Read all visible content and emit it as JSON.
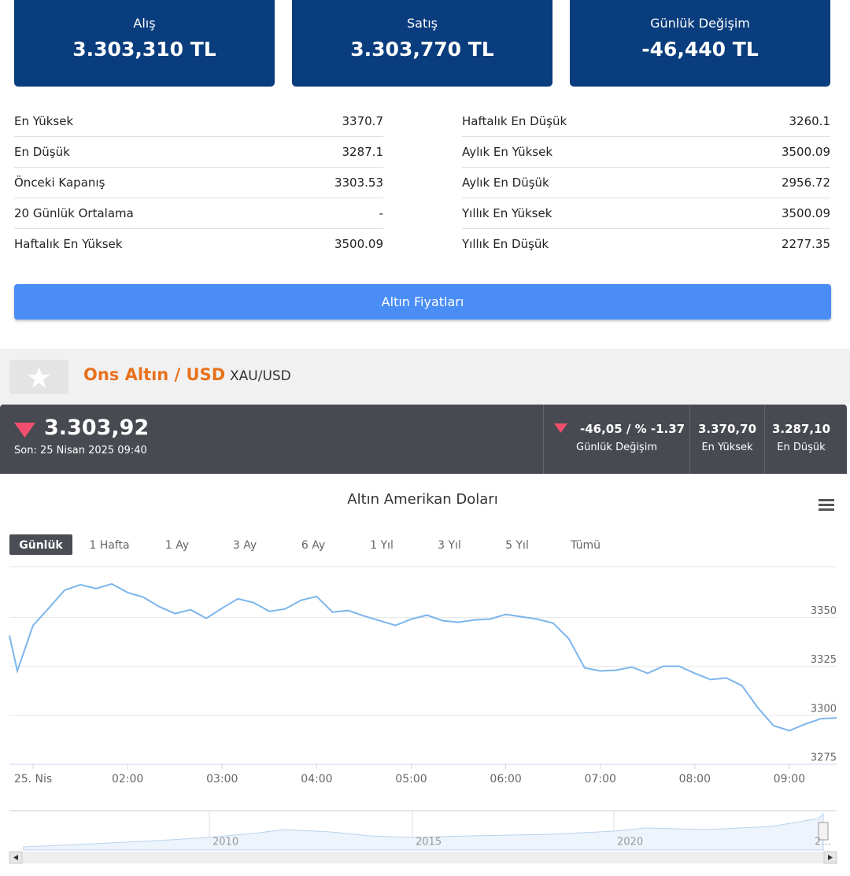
{
  "cards": [
    {
      "label": "Alış",
      "value": "3.303,310 TL"
    },
    {
      "label": "Satış",
      "value": "3.303,770 TL"
    },
    {
      "label": "Günlük Değişim",
      "value": "-46,440 TL"
    }
  ],
  "stats": {
    "left": [
      {
        "label": "En Yüksek",
        "value": "3370.7"
      },
      {
        "label": "En Düşük",
        "value": "3287.1"
      },
      {
        "label": "Önceki Kapanış",
        "value": "3303.53"
      },
      {
        "label": "20 Günlük Ortalama",
        "value": "-"
      },
      {
        "label": "Haftalık En Yüksek",
        "value": "3500.09"
      }
    ],
    "right": [
      {
        "label": "Haftalık En Düşük",
        "value": "3260.1"
      },
      {
        "label": "Aylık En Yüksek",
        "value": "3500.09"
      },
      {
        "label": "Aylık En Düşük",
        "value": "2956.72"
      },
      {
        "label": "Yıllık En Yüksek",
        "value": "3500.09"
      },
      {
        "label": "Yıllık En Düşük",
        "value": "2277.35"
      }
    ]
  },
  "button": "Altın Fiyatları",
  "instrument": {
    "name": "Ons Altın / USD",
    "symbol": "XAU/USD"
  },
  "ticker": {
    "price": "3.303,92",
    "updated": "Son: 25 Nisan 2025 09:40",
    "change": {
      "value": "-46,05 / % -1.37",
      "label": "Günlük Değişim"
    },
    "high": {
      "value": "3.370,70",
      "label": "En Yüksek"
    },
    "low": {
      "value": "3.287,10",
      "label": "En Düşük"
    }
  },
  "chart_data": {
    "type": "line",
    "title": "Altın Amerikan Doları",
    "ranges": [
      "Günlük",
      "1 Hafta",
      "1 Ay",
      "3 Ay",
      "6 Ay",
      "1 Yıl",
      "3 Yıl",
      "5 Yıl",
      "Tümü"
    ],
    "selected_range": "Günlük",
    "x": [
      45,
      50,
      60,
      70,
      80,
      90,
      100,
      110,
      120,
      130,
      140,
      150,
      160,
      170,
      180,
      190,
      200,
      210,
      220,
      230,
      240,
      250,
      260,
      270,
      280,
      290,
      300,
      310,
      320,
      330,
      340,
      350,
      360,
      370,
      380,
      390,
      400,
      410,
      420,
      430,
      440,
      450,
      460,
      470,
      480,
      490,
      500,
      510,
      520,
      530,
      540,
      550,
      560,
      570
    ],
    "values": [
      3340.8,
      3322.7,
      3346.0,
      3354.8,
      3364.0,
      3366.8,
      3364.8,
      3367.2,
      3362.8,
      3360.4,
      3355.6,
      3352.0,
      3354.0,
      3349.6,
      3354.8,
      3359.6,
      3357.6,
      3353.2,
      3354.4,
      3358.8,
      3360.8,
      3352.8,
      3353.6,
      3350.8,
      3348.4,
      3346.0,
      3349.2,
      3351.2,
      3348.4,
      3347.6,
      3348.8,
      3349.2,
      3351.6,
      3350.4,
      3349.2,
      3347.2,
      3339.2,
      3324.3,
      3322.7,
      3323.1,
      3324.7,
      3321.5,
      3325.1,
      3325.1,
      3321.5,
      3318.3,
      3319.1,
      3315.1,
      3303.9,
      3294.7,
      3292.2,
      3295.5,
      3298.3,
      3298.7
    ],
    "color": "#7cb5ec",
    "xlim": [
      45,
      570
    ],
    "xticks": [
      {
        "value": 60,
        "label": "25. Nis"
      },
      {
        "value": 120,
        "label": "02:00"
      },
      {
        "value": 180,
        "label": "03:00"
      },
      {
        "value": 240,
        "label": "04:00"
      },
      {
        "value": 300,
        "label": "05:00"
      },
      {
        "value": 360,
        "label": "06:00"
      },
      {
        "value": 420,
        "label": "07:00"
      },
      {
        "value": 480,
        "label": "08:00"
      },
      {
        "value": 540,
        "label": "09:00"
      }
    ],
    "ylim": [
      3275,
      3376
    ],
    "yticks": [
      3275,
      3300,
      3325,
      3350
    ],
    "grid": true,
    "navigator_labels": [
      "2010",
      "2015",
      "2020",
      "2..."
    ]
  }
}
